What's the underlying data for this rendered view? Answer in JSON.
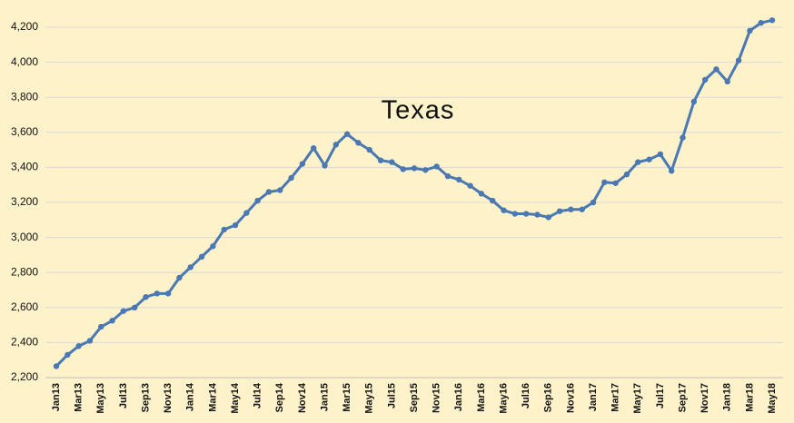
{
  "chart_data": {
    "type": "line",
    "title": "Texas",
    "categories": [
      "Jan13",
      null,
      "Mar13",
      null,
      "May13",
      null,
      "Jul13",
      null,
      "Sep13",
      null,
      "Nov13",
      null,
      "Jan14",
      null,
      "Mar14",
      null,
      "May14",
      null,
      "Jul14",
      null,
      "Sep14",
      null,
      "Nov14",
      null,
      "Jan15",
      null,
      "Mar15",
      null,
      "May15",
      null,
      "Jul15",
      null,
      "Sep15",
      null,
      "Nov15",
      null,
      "Jan16",
      null,
      "Mar16",
      null,
      "May16",
      null,
      "Jul16",
      null,
      "Sep16",
      null,
      "Nov16",
      null,
      "Jan17",
      null,
      "Mar17",
      null,
      "May17",
      null,
      "Jul17",
      null,
      "Sep17",
      null,
      "Nov17",
      null,
      "Jan18",
      null,
      "Mar18",
      null,
      "May18"
    ],
    "series": [
      {
        "color": "#4a78b3",
        "values": [
          2265,
          2330,
          2380,
          2410,
          2490,
          2525,
          2580,
          2600,
          2660,
          2680,
          2680,
          2770,
          2830,
          2890,
          2950,
          3045,
          3070,
          3140,
          3210,
          3260,
          3270,
          3340,
          3420,
          3510,
          3410,
          3530,
          3590,
          3540,
          3500,
          3440,
          3430,
          3390,
          3395,
          3385,
          3405,
          3350,
          3330,
          3295,
          3250,
          3210,
          3155,
          3135,
          3135,
          3130,
          3115,
          3150,
          3160,
          3160,
          3200,
          3315,
          3310,
          3360,
          3430,
          3445,
          3475,
          3380,
          3570,
          3775,
          3900,
          3960,
          3890,
          4010,
          4180,
          4225,
          4240
        ]
      }
    ],
    "ylim": [
      2200,
      4300
    ],
    "yticks": [
      {
        "value": 2200,
        "label": "2,200"
      },
      {
        "value": 2400,
        "label": "2,400"
      },
      {
        "value": 2600,
        "label": "2,600"
      },
      {
        "value": 2800,
        "label": "2,800"
      },
      {
        "value": 3000,
        "label": "3,000"
      },
      {
        "value": 3200,
        "label": "3,200"
      },
      {
        "value": 3400,
        "label": "3,400"
      },
      {
        "value": 3600,
        "label": "3,600"
      },
      {
        "value": 3800,
        "label": "3,800"
      },
      {
        "value": 4000,
        "label": "4,000"
      },
      {
        "value": 4200,
        "label": "4,200"
      }
    ],
    "grid": true
  }
}
